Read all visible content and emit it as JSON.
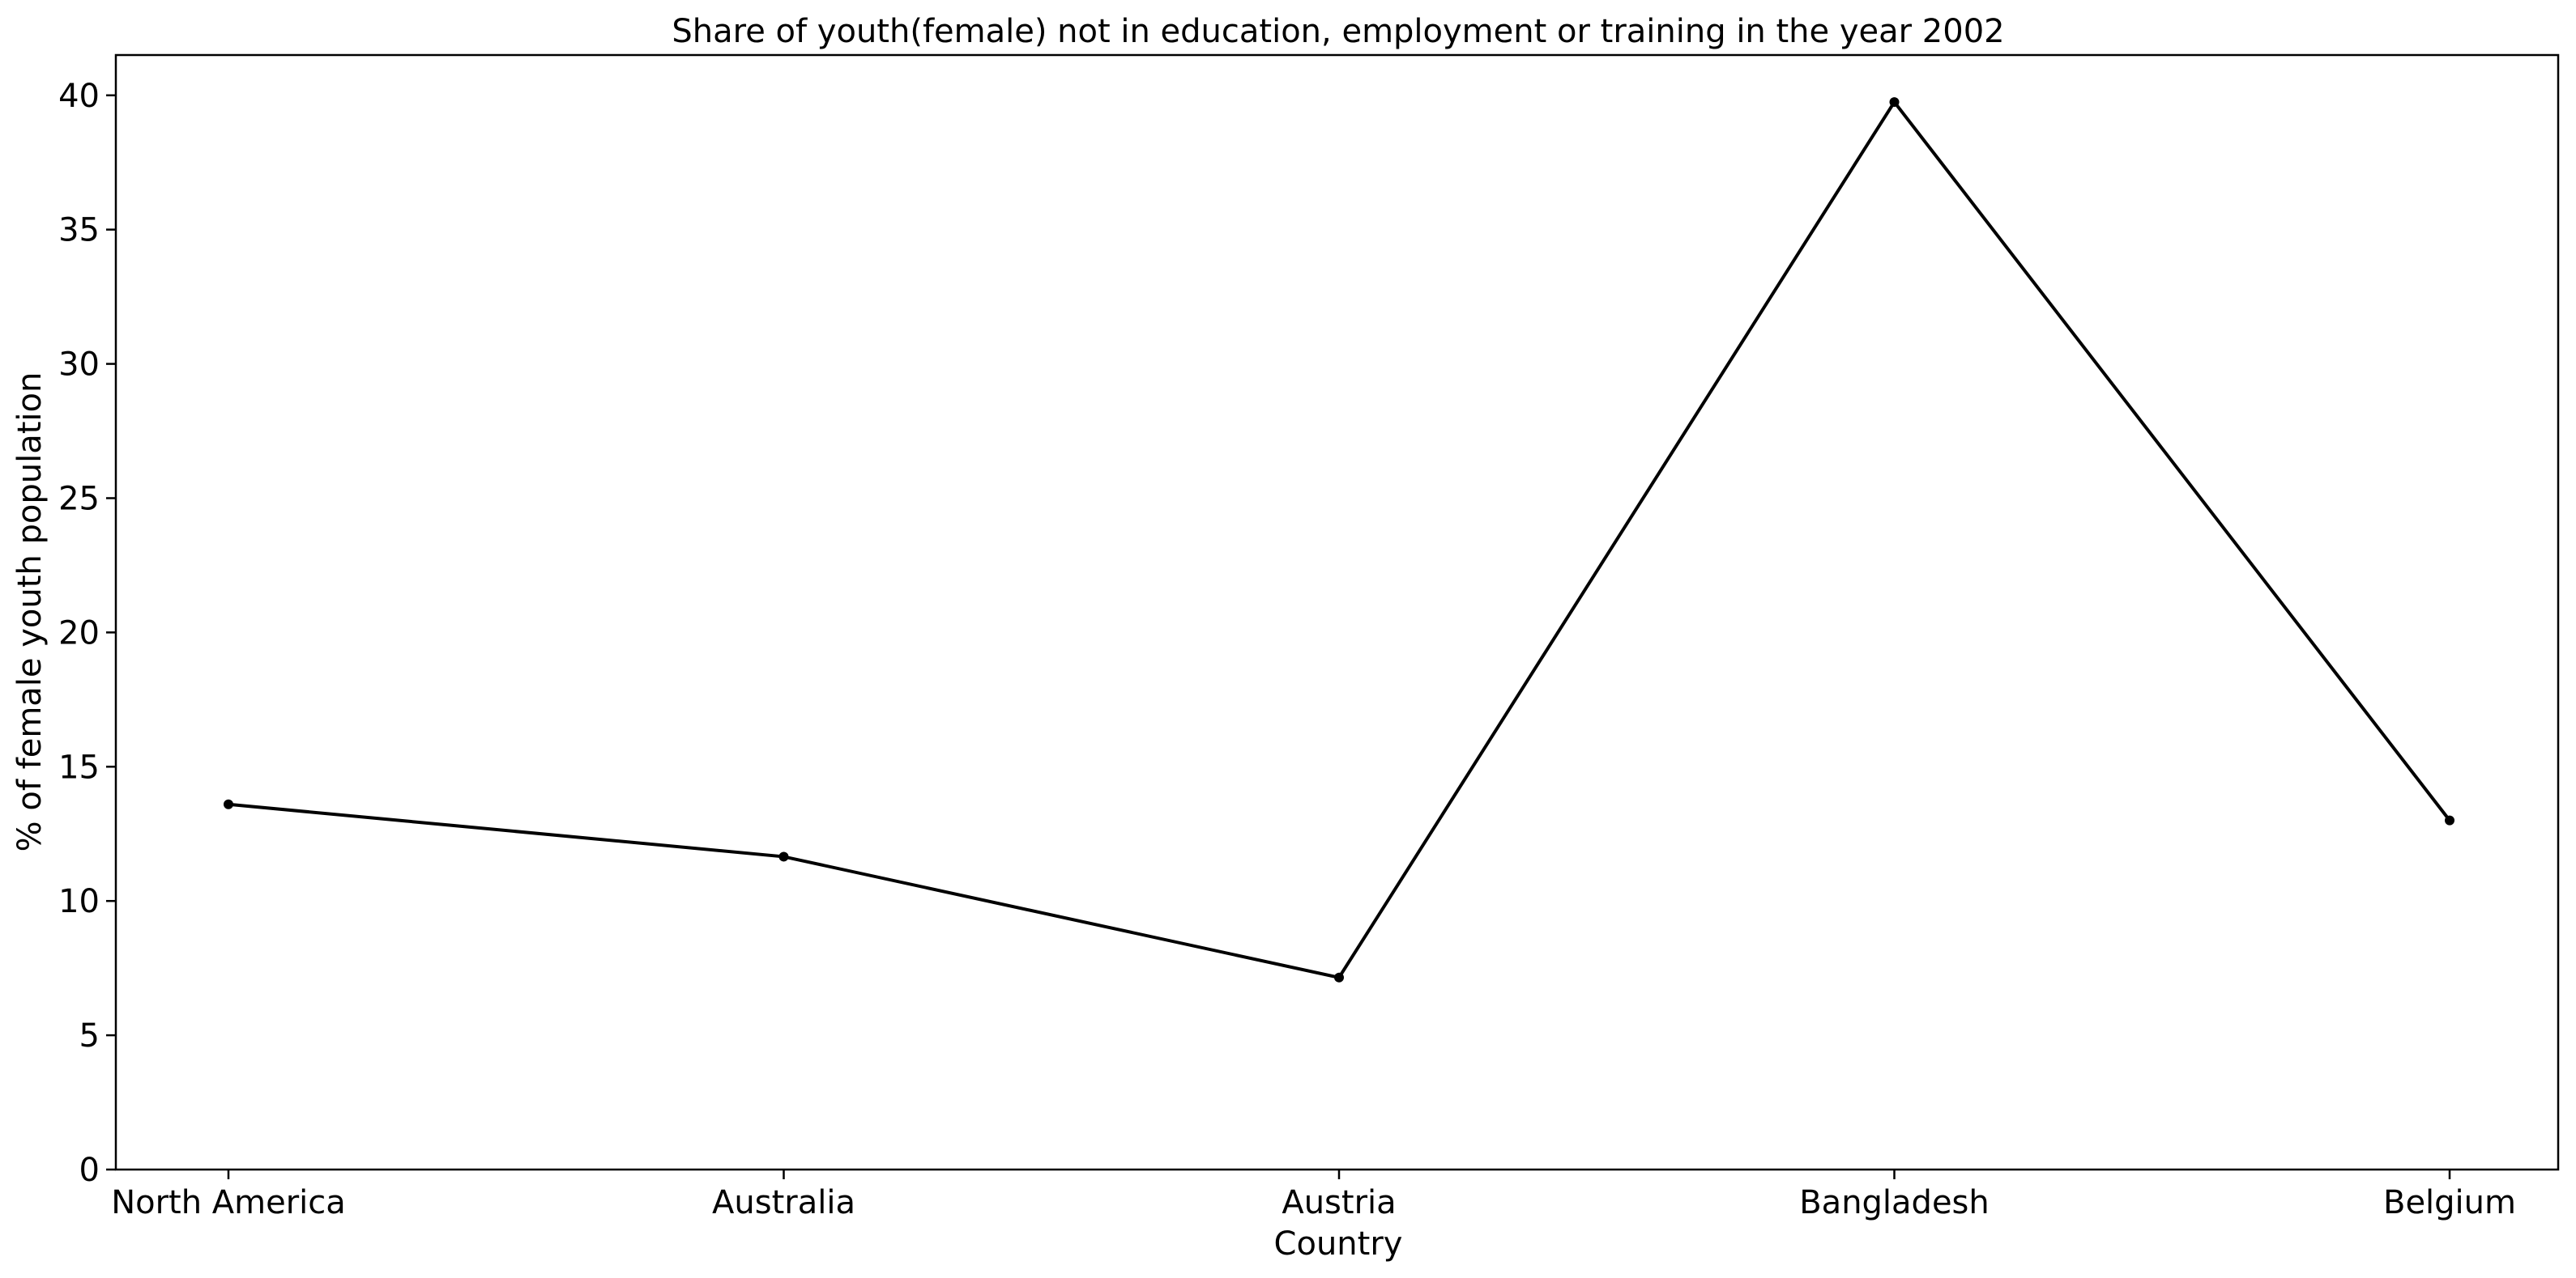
{
  "chart_data": {
    "type": "line",
    "title": "Share of youth(female) not in education, employment or training in the year 2002",
    "xlabel": "Country",
    "ylabel": "% of female youth population",
    "categories": [
      "North America",
      "Australia",
      "Austria",
      "Bangladesh",
      "Belgium"
    ],
    "series": [
      {
        "values": [
          13.6,
          11.65,
          7.15,
          39.75,
          13.0
        ],
        "color": "#000000",
        "marker": "dot"
      }
    ],
    "ylim": [
      0,
      41.5
    ],
    "yticks": [
      0,
      5,
      10,
      15,
      20,
      25,
      30,
      35,
      40
    ],
    "grid": false,
    "legend": "none"
  }
}
